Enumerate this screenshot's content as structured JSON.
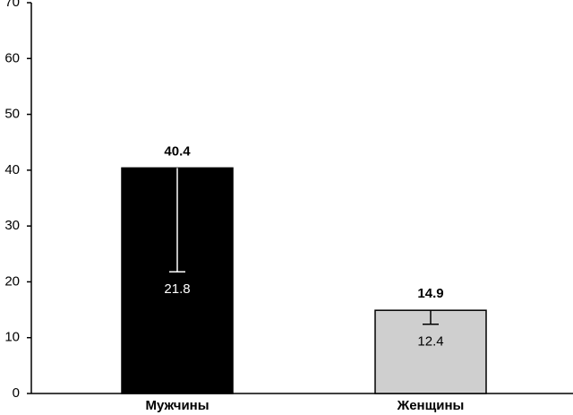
{
  "chart_data": {
    "type": "bar",
    "categories": [
      "Мужчины",
      "Женщины"
    ],
    "values": [
      40.4,
      14.9
    ],
    "inner_values": [
      21.8,
      12.4
    ],
    "colors": [
      "#000000",
      "#cfcfcf"
    ],
    "ylim": [
      0,
      70
    ],
    "yticks": [
      0,
      10,
      20,
      30,
      40,
      50,
      60,
      70
    ],
    "grid": false
  }
}
